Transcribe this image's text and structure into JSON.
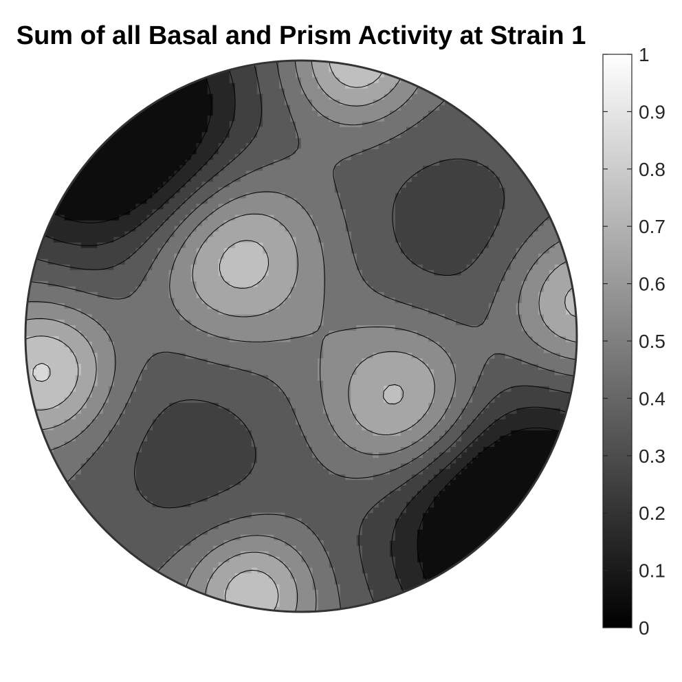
{
  "chart_data": {
    "type": "heatmap",
    "subtype": "filled-contour pole figure",
    "title": "Sum of all Basal and Prism Activity at Strain 1",
    "xlabel": "",
    "ylabel": "",
    "colormap": "gray",
    "clim": [
      0,
      1
    ],
    "contour_levels": [
      0.1,
      0.2,
      0.3,
      0.4,
      0.5,
      0.6,
      0.7,
      0.8
    ],
    "colorbar": {
      "position": "right",
      "ticks": [
        0,
        0.1,
        0.2,
        0.3,
        0.4,
        0.5,
        0.6,
        0.7,
        0.8,
        0.9,
        1
      ],
      "tick_labels": [
        "0",
        "0.1",
        "0.2",
        "0.3",
        "0.4",
        "0.5",
        "0.6",
        "0.7",
        "0.8",
        "0.9",
        "1"
      ]
    },
    "features": [
      {
        "region": "upper-left rim",
        "level": "minimum",
        "value": 0.0
      },
      {
        "region": "lower-right rim",
        "level": "minimum",
        "value": 0.0
      },
      {
        "region": "upper-right",
        "level": "low",
        "value": 0.3
      },
      {
        "region": "lower-left",
        "level": "low",
        "value": 0.3
      },
      {
        "region": "center",
        "level": "mid",
        "value": 0.4
      },
      {
        "region": "upper-center",
        "level": "high",
        "value": 0.8
      },
      {
        "region": "center-right",
        "level": "high",
        "value": 0.8
      },
      {
        "region": "left rim",
        "level": "high",
        "value": 0.8
      },
      {
        "region": "right rim",
        "level": "high",
        "value": 0.8
      },
      {
        "region": "top rim",
        "level": "high",
        "value": 0.8
      },
      {
        "region": "bottom",
        "level": "high",
        "value": 0.8
      }
    ]
  }
}
